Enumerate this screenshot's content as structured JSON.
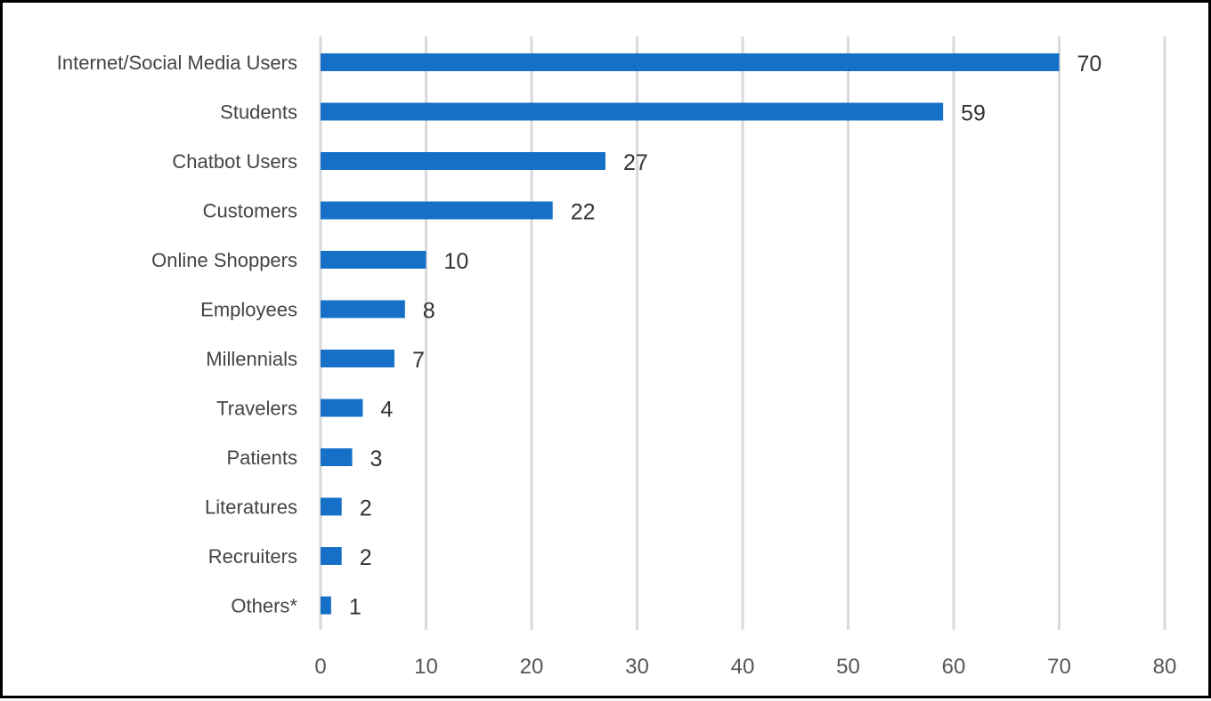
{
  "chart_data": {
    "type": "bar",
    "orientation": "horizontal",
    "categories": [
      "Internet/Social Media Users",
      "Students",
      "Chatbot Users",
      "Customers",
      "Online Shoppers",
      "Employees",
      "Millennials",
      "Travelers",
      "Patients",
      "Literatures",
      "Recruiters",
      "Others*"
    ],
    "values": [
      70,
      59,
      27,
      22,
      10,
      8,
      7,
      4,
      3,
      2,
      2,
      1
    ],
    "value_labels": [
      "70",
      "59",
      "27",
      "22",
      "10",
      "8",
      "7",
      "4",
      "3",
      "2",
      "2",
      "1"
    ],
    "xlim": [
      0,
      80
    ],
    "x_ticks": [
      0,
      10,
      20,
      30,
      40,
      50,
      60,
      70,
      80
    ],
    "x_tick_labels": [
      "0",
      "10",
      "20",
      "30",
      "40",
      "50",
      "60",
      "70",
      "80"
    ],
    "grid": true,
    "legend": "none",
    "colors": {
      "bar": "#1670C8",
      "grid": "#D9D9D9",
      "frame": "#000000"
    }
  }
}
